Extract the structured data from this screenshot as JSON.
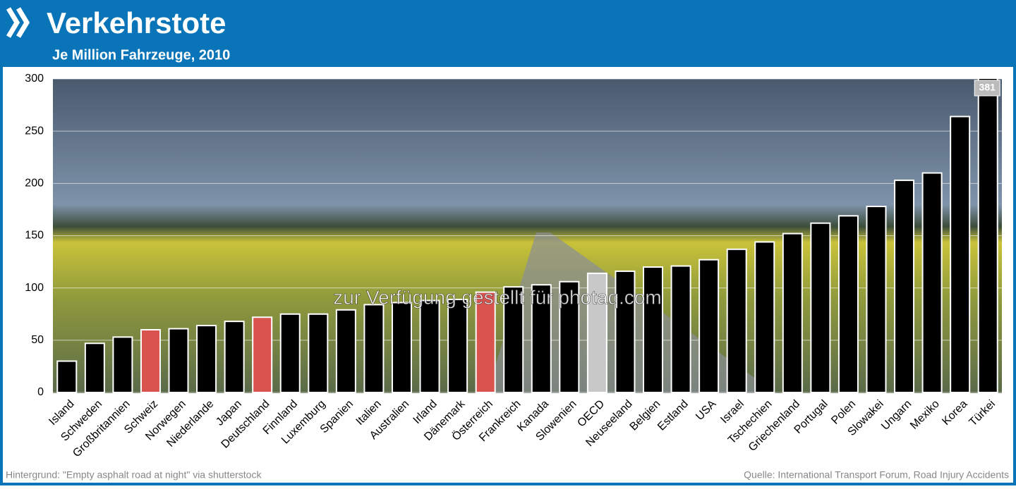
{
  "chart_data": {
    "type": "bar",
    "title": "Verkehrstote",
    "subtitle": "Je Million Fahrzeuge, 2010",
    "categories": [
      "Island",
      "Schweden",
      "Großbritannien",
      "Schweiz",
      "Norwegen",
      "Niederlande",
      "Japan",
      "Deutschland",
      "Finnland",
      "Luxemburg",
      "Spanien",
      "Italien",
      "Australien",
      "Irland",
      "Dänemark",
      "Österreich",
      "Frankreich",
      "Kanada",
      "Slowenien",
      "OECD",
      "Neuseeland",
      "Belgien",
      "Estland",
      "USA",
      "Israel",
      "Tschechien",
      "Griechenland",
      "Portugal",
      "Polen",
      "Slowakei",
      "Ungarn",
      "Mexiko",
      "Korea",
      "Türkei"
    ],
    "values": [
      30,
      47,
      53,
      60,
      61,
      64,
      68,
      72,
      75,
      75,
      79,
      84,
      86,
      88,
      89,
      96,
      101,
      103,
      106,
      114,
      116,
      120,
      121,
      127,
      137,
      144,
      152,
      162,
      169,
      178,
      203,
      210,
      264,
      381
    ],
    "value_labels": [
      null,
      null,
      null,
      null,
      null,
      null,
      null,
      null,
      null,
      null,
      null,
      null,
      null,
      null,
      null,
      null,
      null,
      null,
      null,
      null,
      null,
      null,
      null,
      null,
      null,
      null,
      null,
      null,
      null,
      null,
      null,
      null,
      null,
      "381"
    ],
    "colors": [
      "#000000",
      "#000000",
      "#000000",
      "#d9534f",
      "#000000",
      "#000000",
      "#000000",
      "#d9534f",
      "#000000",
      "#000000",
      "#000000",
      "#000000",
      "#000000",
      "#000000",
      "#000000",
      "#d9534f",
      "#000000",
      "#000000",
      "#000000",
      "#c8c8c8",
      "#000000",
      "#000000",
      "#000000",
      "#000000",
      "#000000",
      "#000000",
      "#000000",
      "#000000",
      "#000000",
      "#000000",
      "#000000",
      "#000000",
      "#000000",
      "#000000"
    ],
    "ylim": [
      0,
      300
    ],
    "yticks": [
      0,
      50,
      100,
      150,
      200,
      250,
      300
    ],
    "grid": true,
    "watermark": "zur Verfügung gestellt für photaq.com",
    "source_left": "Hintergrund: \"Empty asphalt road at night\" via shutterstock",
    "source_right": "Quelle: International Transport Forum, Road Injury Accidents"
  }
}
